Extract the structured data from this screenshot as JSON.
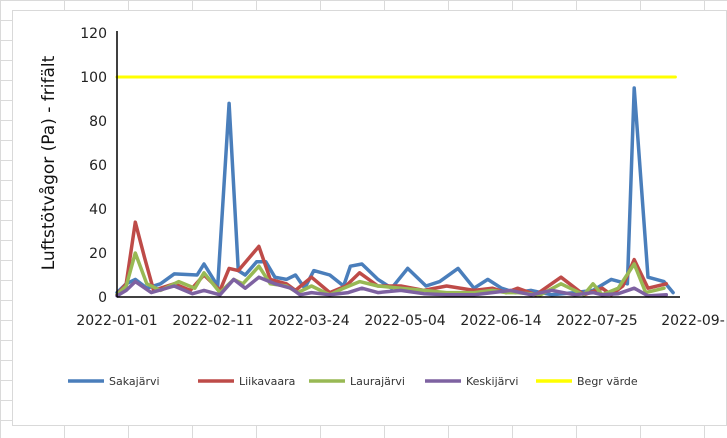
{
  "chart_data": {
    "type": "line",
    "title": "",
    "ylabel": "Luftstötvågor (Pa) - frifält",
    "xlabel": "",
    "ylim": [
      0,
      120
    ],
    "yticks": [
      "0",
      "20",
      "40",
      "60",
      "80",
      "100",
      "120"
    ],
    "xticks": [
      "2022-01-01",
      "2022-02-11",
      "2022-03-24",
      "2022-05-04",
      "2022-06-14",
      "2022-07-25",
      "2022-09-"
    ],
    "xlim": [
      "2022-01-01",
      "2022-09-04"
    ],
    "grid": false,
    "legend_position": "bottom",
    "series": [
      {
        "name": "Sakajärvi",
        "color": "#4a7ebb",
        "points": [
          [
            "2022-01-01",
            2
          ],
          [
            "2022-01-05",
            6
          ],
          [
            "2022-01-09",
            8
          ],
          [
            "2022-01-14",
            4
          ],
          [
            "2022-01-20",
            6
          ],
          [
            "2022-01-26",
            10.5
          ],
          [
            "2022-02-05",
            10
          ],
          [
            "2022-02-08",
            15
          ],
          [
            "2022-02-14",
            5
          ],
          [
            "2022-02-19",
            88
          ],
          [
            "2022-02-23",
            12
          ],
          [
            "2022-02-26",
            10
          ],
          [
            "2022-03-03",
            16
          ],
          [
            "2022-03-07",
            16
          ],
          [
            "2022-03-11",
            9
          ],
          [
            "2022-03-16",
            8
          ],
          [
            "2022-03-20",
            10
          ],
          [
            "2022-03-24",
            4
          ],
          [
            "2022-03-28",
            12
          ],
          [
            "2022-04-04",
            10
          ],
          [
            "2022-04-10",
            5
          ],
          [
            "2022-04-13",
            14
          ],
          [
            "2022-04-18",
            15
          ],
          [
            "2022-04-25",
            8
          ],
          [
            "2022-05-01",
            4
          ],
          [
            "2022-05-08",
            13
          ],
          [
            "2022-05-16",
            5
          ],
          [
            "2022-05-22",
            7
          ],
          [
            "2022-05-30",
            13
          ],
          [
            "2022-06-06",
            4
          ],
          [
            "2022-06-12",
            8
          ],
          [
            "2022-06-18",
            4
          ],
          [
            "2022-06-24",
            2
          ],
          [
            "2022-07-01",
            3
          ],
          [
            "2022-07-10",
            1
          ],
          [
            "2022-07-20",
            2
          ],
          [
            "2022-07-28",
            3
          ],
          [
            "2022-08-05",
            8
          ],
          [
            "2022-08-12",
            6
          ],
          [
            "2022-08-15",
            95
          ],
          [
            "2022-08-21",
            9
          ],
          [
            "2022-08-28",
            7
          ],
          [
            "2022-09-01",
            2
          ]
        ]
      },
      {
        "name": "Liikavaara",
        "color": "#be4b48",
        "points": [
          [
            "2022-01-01",
            1
          ],
          [
            "2022-01-05",
            6
          ],
          [
            "2022-01-09",
            34
          ],
          [
            "2022-01-13",
            18
          ],
          [
            "2022-01-17",
            3
          ],
          [
            "2022-01-26",
            6
          ],
          [
            "2022-02-02",
            3
          ],
          [
            "2022-02-08",
            10
          ],
          [
            "2022-02-15",
            3
          ],
          [
            "2022-02-19",
            13
          ],
          [
            "2022-02-23",
            12
          ],
          [
            "2022-03-04",
            23
          ],
          [
            "2022-03-09",
            8
          ],
          [
            "2022-03-16",
            6
          ],
          [
            "2022-03-20",
            3
          ],
          [
            "2022-03-27",
            9
          ],
          [
            "2022-04-04",
            2
          ],
          [
            "2022-04-11",
            5
          ],
          [
            "2022-04-17",
            11
          ],
          [
            "2022-04-25",
            5
          ],
          [
            "2022-05-05",
            5
          ],
          [
            "2022-05-15",
            3
          ],
          [
            "2022-05-25",
            5
          ],
          [
            "2022-06-06",
            3
          ],
          [
            "2022-06-14",
            4
          ],
          [
            "2022-06-20",
            2
          ],
          [
            "2022-06-25",
            4
          ],
          [
            "2022-07-03",
            1
          ],
          [
            "2022-07-14",
            9
          ],
          [
            "2022-07-24",
            1
          ],
          [
            "2022-08-01",
            4
          ],
          [
            "2022-08-05",
            1
          ],
          [
            "2022-08-10",
            5
          ],
          [
            "2022-08-15",
            17
          ],
          [
            "2022-08-21",
            4
          ],
          [
            "2022-08-29",
            6
          ]
        ]
      },
      {
        "name": "Laurajärvi",
        "color": "#98b954",
        "points": [
          [
            "2022-01-01",
            1
          ],
          [
            "2022-01-05",
            5
          ],
          [
            "2022-01-09",
            20
          ],
          [
            "2022-01-14",
            6
          ],
          [
            "2022-01-20",
            3
          ],
          [
            "2022-01-28",
            7
          ],
          [
            "2022-02-04",
            4
          ],
          [
            "2022-02-08",
            11
          ],
          [
            "2022-02-15",
            2
          ],
          [
            "2022-02-21",
            8
          ],
          [
            "2022-02-25",
            6
          ],
          [
            "2022-03-04",
            14
          ],
          [
            "2022-03-09",
            6
          ],
          [
            "2022-03-16",
            5
          ],
          [
            "2022-03-21",
            2
          ],
          [
            "2022-03-27",
            5
          ],
          [
            "2022-04-04",
            1
          ],
          [
            "2022-04-10",
            4
          ],
          [
            "2022-04-17",
            7
          ],
          [
            "2022-04-25",
            5
          ],
          [
            "2022-05-05",
            4
          ],
          [
            "2022-05-15",
            3
          ],
          [
            "2022-05-25",
            2
          ],
          [
            "2022-06-06",
            2
          ],
          [
            "2022-06-14",
            3
          ],
          [
            "2022-06-20",
            2
          ],
          [
            "2022-06-25",
            2
          ],
          [
            "2022-07-05",
            1
          ],
          [
            "2022-07-14",
            6
          ],
          [
            "2022-07-24",
            1
          ],
          [
            "2022-07-28",
            6
          ],
          [
            "2022-08-01",
            1
          ],
          [
            "2022-08-08",
            4
          ],
          [
            "2022-08-15",
            15
          ],
          [
            "2022-08-20",
            2
          ],
          [
            "2022-08-28",
            4
          ]
        ]
      },
      {
        "name": "Keskijärvi",
        "color": "#7e62a1",
        "points": [
          [
            "2022-01-01",
            0.5
          ],
          [
            "2022-01-05",
            3
          ],
          [
            "2022-01-09",
            7
          ],
          [
            "2022-01-16",
            2
          ],
          [
            "2022-01-26",
            5
          ],
          [
            "2022-02-03",
            1.5
          ],
          [
            "2022-02-08",
            3
          ],
          [
            "2022-02-15",
            1
          ],
          [
            "2022-02-21",
            8
          ],
          [
            "2022-02-26",
            4
          ],
          [
            "2022-03-04",
            9
          ],
          [
            "2022-03-11",
            6
          ],
          [
            "2022-03-18",
            4
          ],
          [
            "2022-03-22",
            1
          ],
          [
            "2022-03-27",
            2
          ],
          [
            "2022-04-04",
            1
          ],
          [
            "2022-04-12",
            2
          ],
          [
            "2022-04-18",
            4
          ],
          [
            "2022-04-25",
            2
          ],
          [
            "2022-05-05",
            3
          ],
          [
            "2022-05-15",
            1.5
          ],
          [
            "2022-05-25",
            1
          ],
          [
            "2022-06-06",
            1
          ],
          [
            "2022-06-14",
            2
          ],
          [
            "2022-06-22",
            3
          ],
          [
            "2022-07-01",
            1
          ],
          [
            "2022-07-10",
            3
          ],
          [
            "2022-07-20",
            1
          ],
          [
            "2022-07-28",
            2
          ],
          [
            "2022-08-01",
            1
          ],
          [
            "2022-08-08",
            1.5
          ],
          [
            "2022-08-15",
            4
          ],
          [
            "2022-08-21",
            0.5
          ],
          [
            "2022-08-29",
            1
          ]
        ]
      },
      {
        "name": "Begr värde",
        "color": "#ffff00",
        "points": [
          [
            "2022-01-01",
            100
          ],
          [
            "2022-09-02",
            100
          ]
        ]
      }
    ]
  }
}
